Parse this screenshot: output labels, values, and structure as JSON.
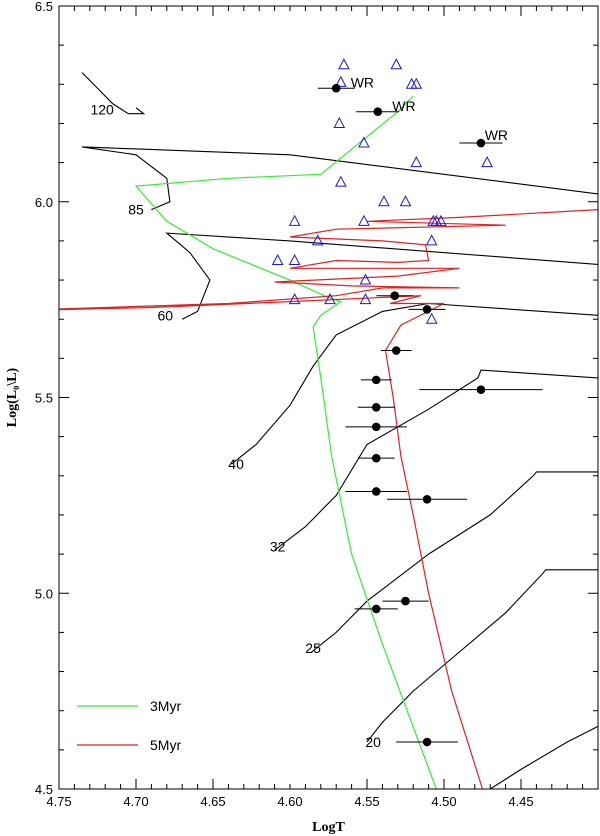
{
  "chart_data": {
    "type": "scatter",
    "xlabel": "LogT",
    "ylabel": "Log(L₀\\L)",
    "xlim": [
      4.75,
      4.4
    ],
    "ylim": [
      4.5,
      6.5
    ],
    "x_ticks": [
      "4.75",
      "4.70",
      "4.65",
      "4.60",
      "4.55",
      "4.50",
      "4.45"
    ],
    "y_ticks": [
      "4.5",
      "5.0",
      "5.5",
      "6.0",
      "6.5"
    ],
    "colors": {
      "isochrone_3myr": "#33ee33",
      "isochrone_5myr": "#dd2222",
      "triangles": "#1a1acc",
      "tracks": "#000000"
    },
    "legend": {
      "placement": "bottom-left",
      "entries": [
        {
          "label": "3Myr",
          "color": "#33ee33"
        },
        {
          "label": "5Myr",
          "color": "#dd2222"
        }
      ]
    },
    "track_labels": [
      {
        "text": "120",
        "x": 4.722,
        "y": 6.235
      },
      {
        "text": "85",
        "x": 4.7,
        "y": 5.98
      },
      {
        "text": "60",
        "x": 4.681,
        "y": 5.71
      },
      {
        "text": "40",
        "x": 4.635,
        "y": 5.33
      },
      {
        "text": "32",
        "x": 4.608,
        "y": 5.12
      },
      {
        "text": "25",
        "x": 4.585,
        "y": 4.86
      },
      {
        "text": "20",
        "x": 4.546,
        "y": 4.62
      }
    ],
    "wr_labels": [
      {
        "text": "WR",
        "x": 4.553,
        "y": 6.305
      },
      {
        "text": "WR",
        "x": 4.526,
        "y": 6.245
      },
      {
        "text": "WR",
        "x": 4.466,
        "y": 6.17
      }
    ],
    "series": [
      {
        "name": "",
        "marker": "filled-circle",
        "points": [
          {
            "x": 4.57,
            "y": 6.29,
            "xerr": 0.012
          },
          {
            "x": 4.543,
            "y": 6.23,
            "xerr": 0.014
          },
          {
            "x": 4.476,
            "y": 6.15,
            "xerr": 0.014
          },
          {
            "x": 4.532,
            "y": 5.76,
            "xerr": 0.012
          },
          {
            "x": 4.511,
            "y": 5.725,
            "xerr": 0.012
          },
          {
            "x": 4.531,
            "y": 5.62,
            "xerr": 0.01
          },
          {
            "x": 4.544,
            "y": 5.545,
            "xerr": 0.01
          },
          {
            "x": 4.476,
            "y": 5.52,
            "xerr": 0.04
          },
          {
            "x": 4.544,
            "y": 5.475,
            "xerr": 0.012
          },
          {
            "x": 4.544,
            "y": 5.425,
            "xerr": 0.02
          },
          {
            "x": 4.544,
            "y": 5.345,
            "xerr": 0.012
          },
          {
            "x": 4.544,
            "y": 5.26,
            "xerr": 0.02
          },
          {
            "x": 4.511,
            "y": 5.24,
            "xerr": 0.026
          },
          {
            "x": 4.525,
            "y": 4.98,
            "xerr": 0.015
          },
          {
            "x": 4.544,
            "y": 4.96,
            "xerr": 0.014
          },
          {
            "x": 4.511,
            "y": 4.62,
            "xerr": 0.02
          }
        ]
      },
      {
        "name": "",
        "marker": "open-triangle",
        "points": [
          {
            "x": 4.565,
            "y": 6.35
          },
          {
            "x": 4.531,
            "y": 6.35
          },
          {
            "x": 4.567,
            "y": 6.305
          },
          {
            "x": 4.521,
            "y": 6.3
          },
          {
            "x": 4.518,
            "y": 6.3
          },
          {
            "x": 4.568,
            "y": 6.2
          },
          {
            "x": 4.552,
            "y": 6.15
          },
          {
            "x": 4.518,
            "y": 6.1
          },
          {
            "x": 4.472,
            "y": 6.1
          },
          {
            "x": 4.567,
            "y": 6.05
          },
          {
            "x": 4.539,
            "y": 6.0
          },
          {
            "x": 4.525,
            "y": 6.0
          },
          {
            "x": 4.597,
            "y": 5.95
          },
          {
            "x": 4.552,
            "y": 5.95
          },
          {
            "x": 4.507,
            "y": 5.95
          },
          {
            "x": 4.502,
            "y": 5.95
          },
          {
            "x": 4.505,
            "y": 5.95
          },
          {
            "x": 4.582,
            "y": 5.9
          },
          {
            "x": 4.508,
            "y": 5.9
          },
          {
            "x": 4.608,
            "y": 5.85
          },
          {
            "x": 4.597,
            "y": 5.85
          },
          {
            "x": 4.551,
            "y": 5.8
          },
          {
            "x": 4.597,
            "y": 5.75
          },
          {
            "x": 4.574,
            "y": 5.75
          },
          {
            "x": 4.551,
            "y": 5.75
          },
          {
            "x": 4.508,
            "y": 5.7
          }
        ]
      }
    ],
    "isochrones": [
      {
        "name": "3Myr",
        "color": "#33ee33",
        "points": [
          [
            4.505,
            4.5
          ],
          [
            4.54,
            4.87
          ],
          [
            4.56,
            5.1
          ],
          [
            4.573,
            5.35
          ],
          [
            4.58,
            5.55
          ],
          [
            4.585,
            5.68
          ],
          [
            4.58,
            5.71
          ],
          [
            4.567,
            5.745
          ],
          [
            4.575,
            5.755
          ],
          [
            4.6,
            5.8
          ],
          [
            4.65,
            5.88
          ],
          [
            4.68,
            5.95
          ],
          [
            4.7,
            6.04
          ],
          [
            4.64,
            6.06
          ],
          [
            4.58,
            6.07
          ],
          [
            4.555,
            6.15
          ],
          [
            4.53,
            6.23
          ],
          [
            4.52,
            6.27
          ]
        ]
      },
      {
        "name": "5Myr",
        "color": "#dd2222",
        "points": [
          [
            4.475,
            4.5
          ],
          [
            4.495,
            4.75
          ],
          [
            4.51,
            5.0
          ],
          [
            4.52,
            5.2
          ],
          [
            4.528,
            5.35
          ],
          [
            4.533,
            5.5
          ],
          [
            4.538,
            5.62
          ],
          [
            4.528,
            5.685
          ],
          [
            4.5,
            5.74
          ],
          [
            4.535,
            5.74
          ],
          [
            4.515,
            5.76
          ],
          [
            4.6,
            5.745
          ],
          [
            4.69,
            5.73
          ],
          [
            4.8,
            5.72
          ],
          [
            4.64,
            5.74
          ],
          [
            4.57,
            5.76
          ],
          [
            4.54,
            5.78
          ],
          [
            4.49,
            5.78
          ],
          [
            4.56,
            5.785
          ],
          [
            4.61,
            5.795
          ],
          [
            4.53,
            5.81
          ],
          [
            4.49,
            5.83
          ],
          [
            4.6,
            5.83
          ],
          [
            4.57,
            5.85
          ],
          [
            4.53,
            5.845
          ],
          [
            4.51,
            5.85
          ],
          [
            4.512,
            5.89
          ],
          [
            4.54,
            5.9
          ],
          [
            4.6,
            5.91
          ],
          [
            4.57,
            5.93
          ],
          [
            4.46,
            5.94
          ],
          [
            4.55,
            5.95
          ],
          [
            4.49,
            5.96
          ],
          [
            4.4,
            5.98
          ]
        ]
      }
    ],
    "tracks": [
      {
        "mass": "120",
        "points": [
          [
            4.735,
            6.33
          ],
          [
            4.725,
            6.29
          ],
          [
            4.715,
            6.25
          ],
          [
            4.705,
            6.225
          ],
          [
            4.695,
            6.225
          ],
          [
            4.7,
            6.24
          ]
        ]
      },
      {
        "mass": "85",
        "points": [
          [
            4.69,
            5.98
          ],
          [
            4.678,
            6.0
          ],
          [
            4.68,
            6.06
          ],
          [
            4.7,
            6.12
          ],
          [
            4.735,
            6.14
          ],
          [
            4.6,
            6.12
          ],
          [
            4.4,
            6.02
          ]
        ]
      },
      {
        "mass": "60",
        "points": [
          [
            4.67,
            5.7
          ],
          [
            4.66,
            5.72
          ],
          [
            4.652,
            5.8
          ],
          [
            4.665,
            5.87
          ],
          [
            4.68,
            5.92
          ],
          [
            4.6,
            5.9
          ],
          [
            4.4,
            5.84
          ]
        ]
      },
      {
        "mass": "40",
        "points": [
          [
            4.638,
            5.33
          ],
          [
            4.622,
            5.38
          ],
          [
            4.6,
            5.48
          ],
          [
            4.585,
            5.58
          ],
          [
            4.57,
            5.66
          ],
          [
            4.54,
            5.72
          ],
          [
            4.51,
            5.74
          ],
          [
            4.4,
            5.71
          ]
        ]
      },
      {
        "mass": "32",
        "points": [
          [
            4.61,
            5.11
          ],
          [
            4.59,
            5.17
          ],
          [
            4.57,
            5.25
          ],
          [
            4.55,
            5.38
          ],
          [
            4.51,
            5.47
          ],
          [
            4.478,
            5.55
          ],
          [
            4.476,
            5.57
          ],
          [
            4.4,
            5.55
          ]
        ]
      },
      {
        "mass": "25",
        "points": [
          [
            4.586,
            4.85
          ],
          [
            4.57,
            4.9
          ],
          [
            4.55,
            4.98
          ],
          [
            4.51,
            5.1
          ],
          [
            4.47,
            5.2
          ],
          [
            4.442,
            5.3
          ],
          [
            4.44,
            5.31
          ],
          [
            4.4,
            5.31
          ]
        ]
      },
      {
        "mass": "20",
        "points": [
          [
            4.55,
            4.62
          ],
          [
            4.54,
            4.67
          ],
          [
            4.52,
            4.75
          ],
          [
            4.49,
            4.85
          ],
          [
            4.46,
            4.95
          ],
          [
            4.436,
            5.05
          ],
          [
            4.434,
            5.06
          ],
          [
            4.4,
            5.06
          ]
        ]
      },
      {
        "mass": "",
        "points": [
          [
            4.47,
            4.5
          ],
          [
            4.45,
            4.55
          ],
          [
            4.42,
            4.62
          ],
          [
            4.4,
            4.66
          ]
        ]
      }
    ]
  }
}
